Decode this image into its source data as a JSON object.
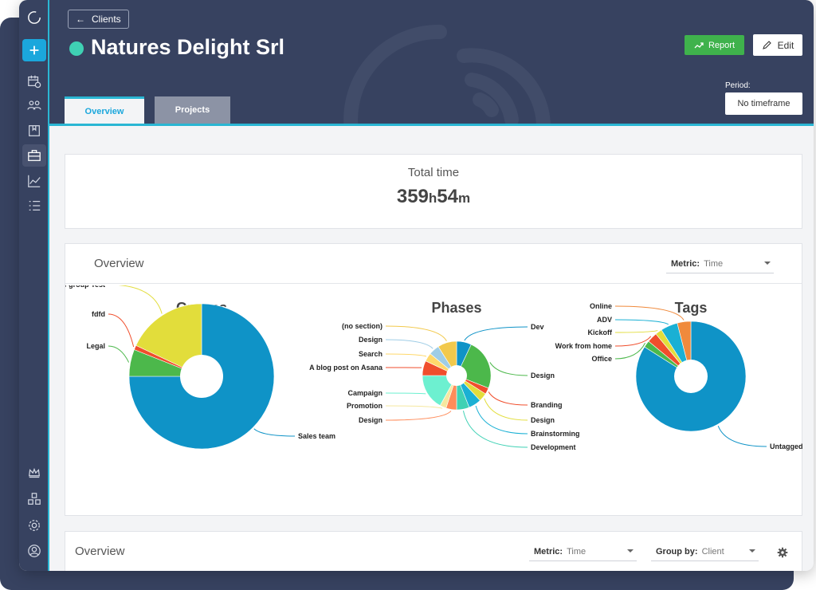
{
  "header": {
    "back_label": "Clients",
    "title": "Natures Delight Srl",
    "report_label": "Report",
    "edit_label": "Edit",
    "period_label": "Period:",
    "period_value": "No timeframe"
  },
  "tabs": [
    "Overview",
    "Projects"
  ],
  "total": {
    "label": "Total time",
    "hours": "359",
    "h": "h",
    "minutes": "54",
    "m": "m"
  },
  "overview_panel": {
    "title": "Overview",
    "metric_label": "Metric:",
    "metric_value": "Time"
  },
  "overview_panel_2": {
    "title": "Overview",
    "metric_label": "Metric:",
    "metric_value": "Time",
    "groupby_label": "Group by:",
    "groupby_value": "Client"
  },
  "colors": {
    "sidebar": "#374260",
    "accent": "#2ab6d3",
    "report": "#3fb24c",
    "status_dot": "#3fd1b4"
  },
  "sidebar_icons": [
    "logo-icon",
    "add-icon",
    "calendar-clock-icon",
    "team-icon",
    "folder-icon",
    "briefcase-icon",
    "chart-icon",
    "list-icon",
    "crown-icon",
    "boxes-icon",
    "settings-icon",
    "user-icon"
  ],
  "chart_data": [
    {
      "type": "pie",
      "title": "Groups",
      "categories": [
        "Sales team",
        "Legal",
        "fdfd",
        "New group Test"
      ],
      "values": [
        75,
        6,
        1,
        18
      ],
      "colors": [
        "#0f93c7",
        "#4cb84b",
        "#f04e2c",
        "#e2dd3b"
      ]
    },
    {
      "type": "pie",
      "title": "Phases",
      "categories": [
        "Dev",
        "Design",
        "Branding",
        "Design",
        "Brainstorming",
        "Development",
        "Design",
        "Promotion",
        "Campaign",
        "A blog post on Asana",
        "Search",
        "Design",
        "(no section)"
      ],
      "values": [
        7,
        24,
        3,
        4,
        6,
        6,
        5,
        3,
        17,
        7,
        4,
        5,
        9
      ],
      "colors": [
        "#0f93c7",
        "#4cb84b",
        "#f04e2c",
        "#e2dd3b",
        "#1ab0d4",
        "#3fd1b4",
        "#ff8c5a",
        "#f5e8a0",
        "#6df0d0",
        "#f04e2c",
        "#ffd86b",
        "#9fcde6",
        "#f2c94c"
      ]
    },
    {
      "type": "pie",
      "title": "Tags",
      "categories": [
        "Untagged",
        "Office",
        "Work from home",
        "Kickoff",
        "ADV",
        "Online"
      ],
      "values": [
        84,
        2,
        3,
        2,
        5,
        4
      ],
      "colors": [
        "#0f93c7",
        "#4cb84b",
        "#f04e2c",
        "#e2dd3b",
        "#1ab0d4",
        "#f08a3c"
      ]
    }
  ]
}
